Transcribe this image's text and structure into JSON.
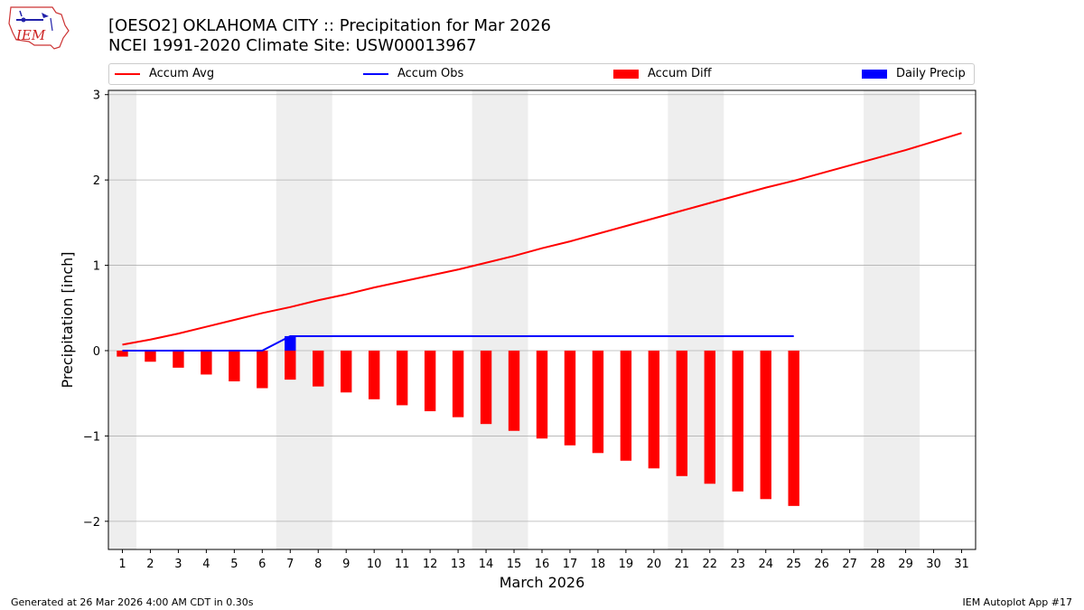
{
  "header": {
    "title_line1": "[OESO2] OKLAHOMA CITY :: Precipitation for Mar 2026",
    "title_line2": "NCEI 1991-2020 Climate Site: USW00013967"
  },
  "logo": {
    "text": "IEM"
  },
  "footer": {
    "left": "Generated at 26 Mar 2026 4:00 AM CDT in 0.30s",
    "right": "IEM Autoplot App #17"
  },
  "colors": {
    "avg": "#ff0000",
    "obs": "#0000ff",
    "diff": "#ff0000",
    "daily": "#0000ff",
    "weekend": "#eeeeee",
    "grid": "#b0b0b0"
  },
  "legend": {
    "placement": "top, spanning plot width",
    "items": [
      {
        "label": "Accum Avg",
        "kind": "line",
        "color": "#ff0000"
      },
      {
        "label": "Accum Obs",
        "kind": "line",
        "color": "#0000ff"
      },
      {
        "label": "Accum Diff",
        "kind": "bar",
        "color": "#ff0000"
      },
      {
        "label": "Daily Precip",
        "kind": "bar",
        "color": "#0000ff"
      }
    ]
  },
  "chart_data": {
    "type": "line",
    "xlabel": "March 2026",
    "ylabel": "Precipitation [inch]",
    "xlim": [
      0.5,
      31.5
    ],
    "ylim": [
      -2.33,
      3.05
    ],
    "xticks": [
      1,
      2,
      3,
      4,
      5,
      6,
      7,
      8,
      9,
      10,
      11,
      12,
      13,
      14,
      15,
      16,
      17,
      18,
      19,
      20,
      21,
      22,
      23,
      24,
      25,
      26,
      27,
      28,
      29,
      30,
      31
    ],
    "yticks": [
      -2,
      -1,
      0,
      1,
      2,
      3
    ],
    "grid": "horizontal",
    "weekend_shading": [
      [
        0.5,
        1.5
      ],
      [
        6.5,
        8.5
      ],
      [
        13.5,
        15.5
      ],
      [
        20.5,
        22.5
      ],
      [
        27.5,
        29.5
      ]
    ],
    "days": [
      1,
      2,
      3,
      4,
      5,
      6,
      7,
      8,
      9,
      10,
      11,
      12,
      13,
      14,
      15,
      16,
      17,
      18,
      19,
      20,
      21,
      22,
      23,
      24,
      25,
      26,
      27,
      28,
      29,
      30,
      31
    ],
    "series": [
      {
        "name": "Accum Avg",
        "type": "line",
        "values": [
          0.07,
          0.13,
          0.2,
          0.28,
          0.36,
          0.44,
          0.51,
          0.59,
          0.66,
          0.74,
          0.81,
          0.88,
          0.95,
          1.03,
          1.11,
          1.2,
          1.28,
          1.37,
          1.46,
          1.55,
          1.64,
          1.73,
          1.82,
          1.91,
          1.99,
          2.08,
          2.17,
          2.26,
          2.35,
          2.45,
          2.55
        ]
      },
      {
        "name": "Accum Obs",
        "type": "line",
        "values": [
          0.0,
          0.0,
          0.0,
          0.0,
          0.0,
          0.0,
          0.17,
          0.17,
          0.17,
          0.17,
          0.17,
          0.17,
          0.17,
          0.17,
          0.17,
          0.17,
          0.17,
          0.17,
          0.17,
          0.17,
          0.17,
          0.17,
          0.17,
          0.17,
          0.17
        ]
      },
      {
        "name": "Accum Diff",
        "type": "bar",
        "values": [
          -0.07,
          -0.13,
          -0.2,
          -0.28,
          -0.36,
          -0.44,
          -0.34,
          -0.42,
          -0.49,
          -0.57,
          -0.64,
          -0.71,
          -0.78,
          -0.86,
          -0.94,
          -1.03,
          -1.11,
          -1.2,
          -1.29,
          -1.38,
          -1.47,
          -1.56,
          -1.65,
          -1.74,
          -1.82
        ]
      },
      {
        "name": "Daily Precip",
        "type": "bar",
        "values": [
          0,
          0,
          0,
          0,
          0,
          0,
          0.17,
          0,
          0,
          0,
          0,
          0,
          0,
          0,
          0,
          0,
          0,
          0,
          0,
          0,
          0,
          0,
          0,
          0,
          0
        ]
      }
    ]
  }
}
